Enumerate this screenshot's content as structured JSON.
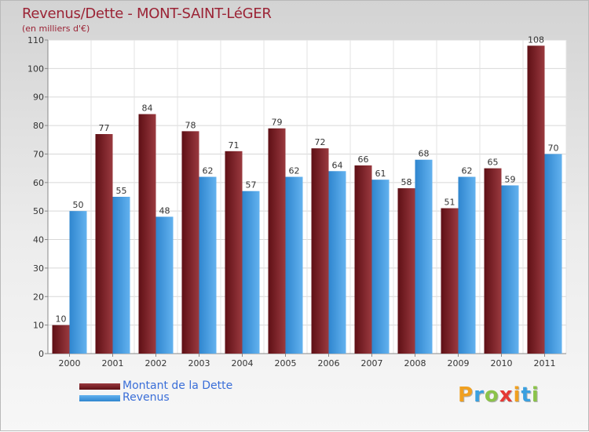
{
  "chart_data": {
    "type": "bar",
    "title": "Revenus/Dette - MONT-SAINT-LéGER",
    "subtitle": "(en milliers d'€)",
    "categories": [
      "2000",
      "2001",
      "2002",
      "2003",
      "2004",
      "2005",
      "2006",
      "2007",
      "2008",
      "2009",
      "2010",
      "2011"
    ],
    "series": [
      {
        "name": "Montant de la Dette",
        "color": "#7a1f24",
        "values": [
          10,
          77,
          84,
          78,
          71,
          79,
          72,
          66,
          58,
          51,
          65,
          108
        ]
      },
      {
        "name": "Revenus",
        "color": "#4a9de2",
        "values": [
          50,
          55,
          48,
          62,
          57,
          62,
          64,
          61,
          68,
          62,
          59,
          70
        ]
      }
    ],
    "ylim": [
      0,
      110
    ],
    "yticks": [
      0,
      10,
      20,
      30,
      40,
      50,
      60,
      70,
      80,
      90,
      100,
      110
    ],
    "grid": true,
    "legend_position": "bottom-left"
  },
  "logo": {
    "letters": [
      {
        "char": "P",
        "color": "#f0a020"
      },
      {
        "char": "r",
        "color": "#3aa0e0"
      },
      {
        "char": "o",
        "color": "#8bc34a"
      },
      {
        "char": "x",
        "color": "#e53935"
      },
      {
        "char": "i",
        "color": "#f0a020"
      },
      {
        "char": "t",
        "color": "#3aa0e0"
      },
      {
        "char": "i",
        "color": "#8bc34a"
      }
    ]
  }
}
